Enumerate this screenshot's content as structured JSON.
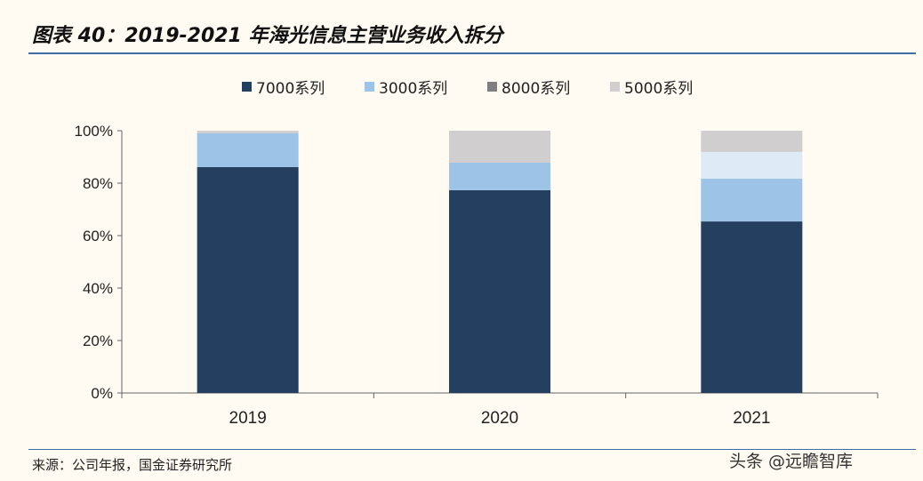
{
  "title": "图表 40：2019-2021 年海光信息主营业务收入拆分",
  "source": "来源：公司年报，国金证券研究所",
  "watermark": "头条 @远瞻智库",
  "chart_data": {
    "type": "bar",
    "stacked": true,
    "categories": [
      "2019",
      "2020",
      "2021"
    ],
    "series": [
      {
        "name": "7000系列",
        "color": "#253f61",
        "values": [
          86.1,
          77.3,
          65.4
        ]
      },
      {
        "name": "3000系列",
        "color": "#9dc3e6",
        "values": [
          13.0,
          10.5,
          16.3
        ]
      },
      {
        "name": "8000系列",
        "color": "#7f7f7f",
        "point_colors": [
          "#7f7f7f",
          "#7f7f7f",
          "#deebf7"
        ],
        "values": [
          0,
          0,
          10.2
        ]
      },
      {
        "name": "5000系列",
        "color": "#d0cece",
        "values": [
          0.9,
          12.2,
          8.1
        ]
      }
    ],
    "ylim": [
      0,
      100
    ],
    "yticks": [
      "0%",
      "20%",
      "40%",
      "60%",
      "80%",
      "100%"
    ],
    "legend": "top",
    "grid": false
  }
}
